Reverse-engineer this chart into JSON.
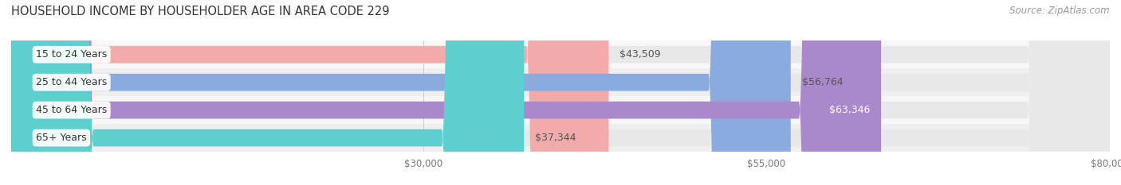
{
  "title": "HOUSEHOLD INCOME BY HOUSEHOLDER AGE IN AREA CODE 229",
  "source": "Source: ZipAtlas.com",
  "categories": [
    "15 to 24 Years",
    "25 to 44 Years",
    "45 to 64 Years",
    "65+ Years"
  ],
  "values": [
    43509,
    56764,
    63346,
    37344
  ],
  "value_labels": [
    "$43,509",
    "$56,764",
    "$63,346",
    "$37,344"
  ],
  "bar_colors": [
    "#F2AAAA",
    "#8BAADE",
    "#A989CC",
    "#5ECFCF"
  ],
  "bar_bg_color": "#E8E8E8",
  "row_bg_colors": [
    "#F7F7F7",
    "#EFEFEF",
    "#F7F7F7",
    "#EFEFEF"
  ],
  "xmin": 0,
  "xmax": 80000,
  "xticks": [
    30000,
    55000,
    80000
  ],
  "xtick_labels": [
    "$30,000",
    "$55,000",
    "$80,000"
  ],
  "title_fontsize": 10.5,
  "label_fontsize": 9,
  "tick_fontsize": 8.5,
  "source_fontsize": 8.5,
  "bar_height": 0.62,
  "figsize": [
    14.06,
    2.33
  ],
  "dpi": 100
}
